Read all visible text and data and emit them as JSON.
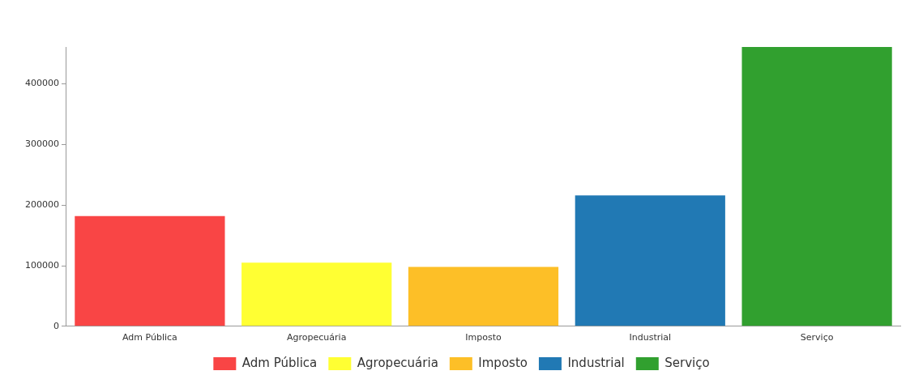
{
  "chart_data": {
    "type": "bar",
    "categories": [
      "Adm Pública",
      "Agropecuária",
      "Imposto",
      "Industrial",
      "Serviço"
    ],
    "series": [
      {
        "name": "Adm Pública",
        "color": "#f94545",
        "values": [
          182000,
          null,
          null,
          null,
          null
        ]
      },
      {
        "name": "Agropecuária",
        "color": "#ffff33",
        "values": [
          null,
          105000,
          null,
          null,
          null
        ]
      },
      {
        "name": "Imposto",
        "color": "#fdbf27",
        "values": [
          null,
          null,
          98000,
          null,
          null
        ]
      },
      {
        "name": "Industrial",
        "color": "#2179b4",
        "values": [
          null,
          null,
          null,
          216000,
          null
        ]
      },
      {
        "name": "Serviço",
        "color": "#31a02f",
        "values": [
          null,
          null,
          null,
          null,
          461000
        ]
      }
    ],
    "ylim": [
      0,
      461000
    ],
    "yticks": [
      0,
      100000,
      200000,
      300000,
      400000
    ],
    "grid": false,
    "legend": "bottom"
  }
}
